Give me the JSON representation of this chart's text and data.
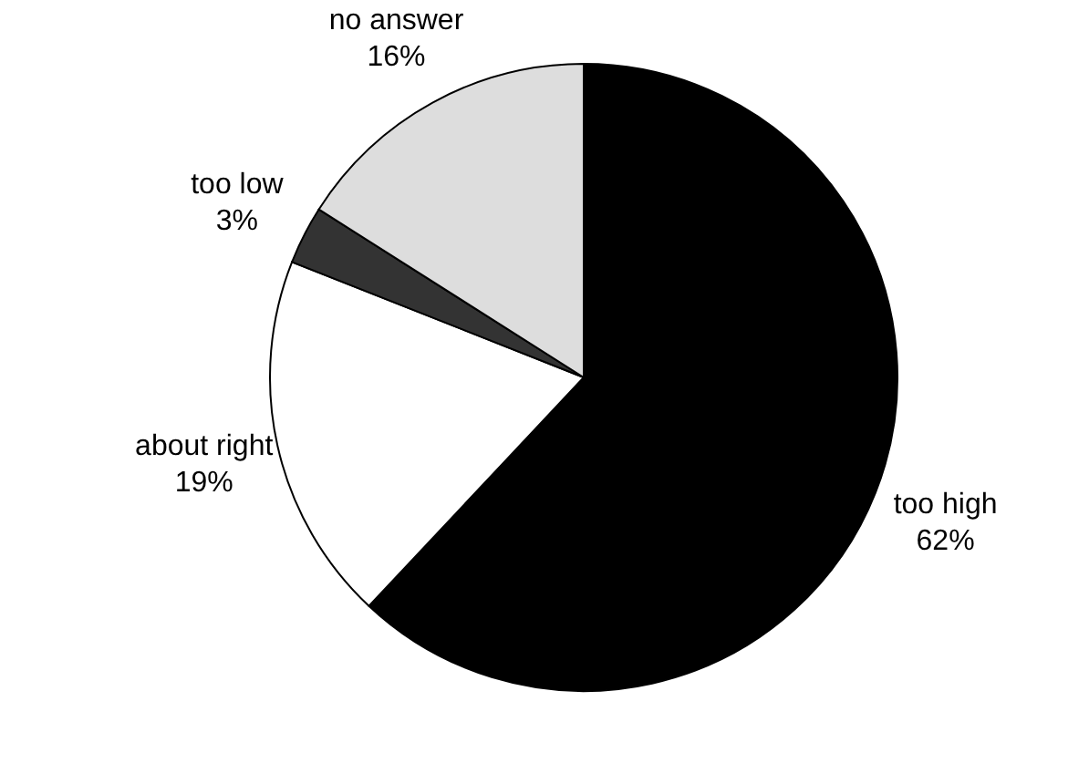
{
  "chart_data": {
    "type": "pie",
    "categories": [
      "too high",
      "about right",
      "too low",
      "no answer"
    ],
    "values": [
      62,
      19,
      3,
      16
    ],
    "value_labels": [
      "62%",
      "19%",
      "3%",
      "16%"
    ],
    "colors": [
      "#000000",
      "#ffffff",
      "#333333",
      "#dddddd"
    ]
  }
}
